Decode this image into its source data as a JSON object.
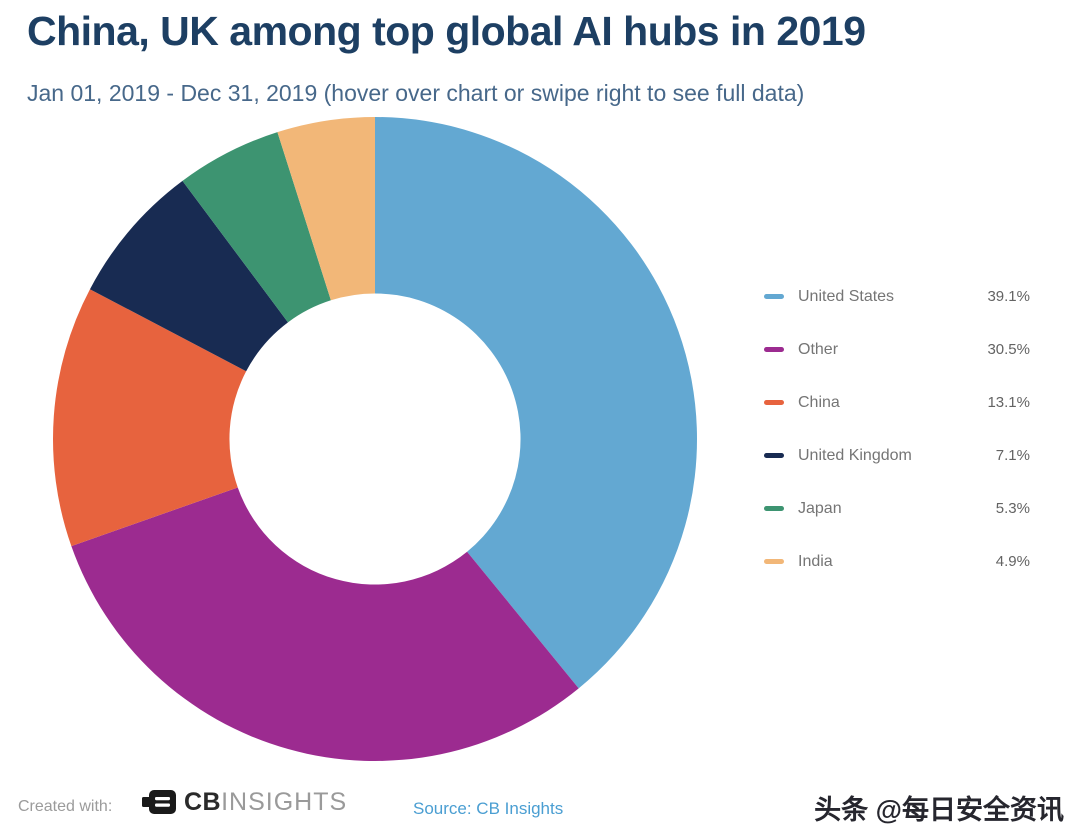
{
  "header": {
    "title": "China, UK among top global AI hubs in 2019",
    "subtitle": "Jan 01, 2019 - Dec 31, 2019 (hover over chart or swipe right to see full data)"
  },
  "chart_data": {
    "type": "pie",
    "subtype": "donut",
    "title": "China, UK among top global AI hubs in 2019",
    "period": "Jan 01, 2019 - Dec 31, 2019",
    "unit": "percent",
    "direction": "clockwise",
    "start_angle_deg": 0,
    "inner_radius_ratio": 0.452,
    "legend_position": "right",
    "grid": false,
    "categories": [
      "United States",
      "Other",
      "China",
      "United Kingdom",
      "Japan",
      "India"
    ],
    "values": [
      39.1,
      30.5,
      13.1,
      7.1,
      5.3,
      4.9
    ],
    "labels": [
      "39.1%",
      "30.5%",
      "13.1%",
      "7.1%",
      "5.3%",
      "4.9%"
    ],
    "colors": [
      "#63a8d2",
      "#9c2b90",
      "#e7633e",
      "#182b52",
      "#3d9471",
      "#f2b778"
    ]
  },
  "footer": {
    "created_with": "Created with:",
    "logo_cb": "CB",
    "logo_insights": "INSIGHTS",
    "source": "Source: CB Insights",
    "watermark": "头条 @每日安全资讯"
  },
  "colors": {
    "title": "#1d3f63",
    "subtitle": "#47688a",
    "source_link": "#4a9ed2"
  }
}
